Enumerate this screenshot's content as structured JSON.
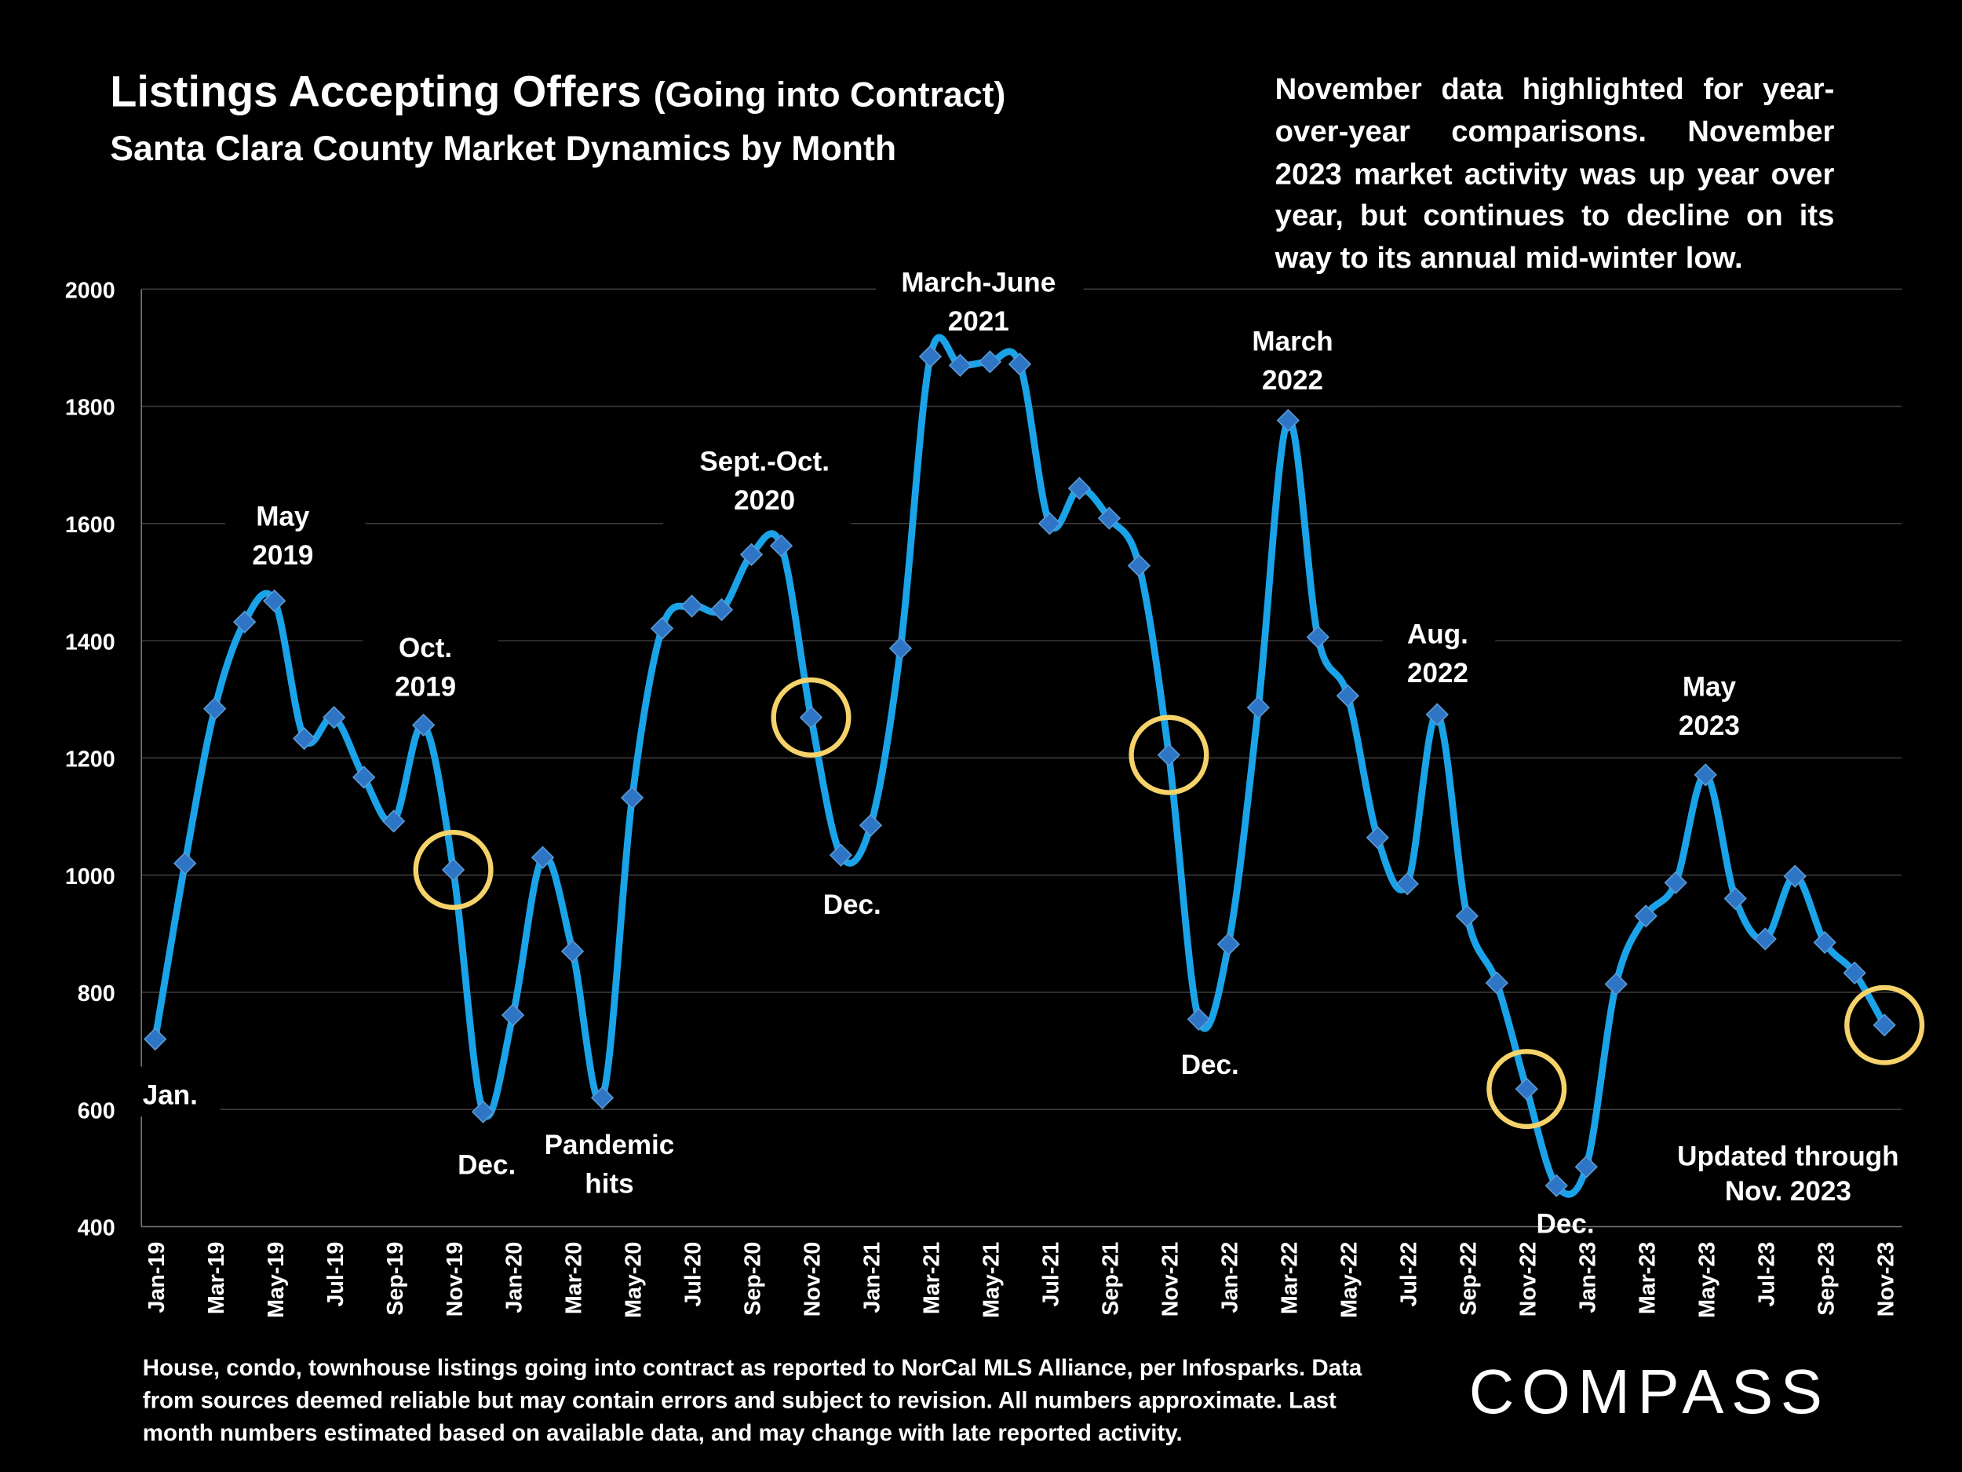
{
  "header": {
    "title_main": "Listings Accepting Offers",
    "title_paren": "(Going into Contract)",
    "subtitle": "Santa Clara County Market Dynamics by Month"
  },
  "note": "November data highlighted for year-over-year comparisons. November 2023 market activity was up year over year, but continues to decline on its way to its annual mid-winter low.",
  "annotations": {
    "jan": "Jan.",
    "may2019": [
      "May",
      "2019"
    ],
    "oct2019": [
      "Oct.",
      "2019"
    ],
    "dec2019": "Dec.",
    "pandemic": [
      "Pandemic",
      "hits"
    ],
    "septoct2020": [
      "Sept.-Oct.",
      "2020"
    ],
    "dec2020": "Dec.",
    "marjun2021": [
      "March-June",
      "2021"
    ],
    "dec2021": "Dec.",
    "mar2022": [
      "March",
      "2022"
    ],
    "aug2022": [
      "Aug.",
      "2022"
    ],
    "dec2022": "Dec.",
    "may2023": [
      "May",
      "2023"
    ],
    "updated": [
      "Updated through",
      "Nov. 2023"
    ]
  },
  "footer": [
    "House, condo, townhouse listings going into contract as reported to NorCal MLS Alliance, per Infosparks. Data",
    "from sources deemed reliable but may contain errors and subject to revision. All numbers approximate. Last",
    "month numbers estimated based on available data, and may change with late reported activity."
  ],
  "logo": "COMPASS",
  "colors": {
    "line": "#1aa3e8",
    "marker": "#2e75c6",
    "highlight": "#f5d36a",
    "grid": "#3a3a3a"
  },
  "chart_data": {
    "type": "line",
    "title": "Listings Accepting Offers (Going into Contract)",
    "subtitle": "Santa Clara County Market Dynamics by Month",
    "ylim": [
      400,
      2000
    ],
    "yticks": [
      400,
      600,
      800,
      1000,
      1200,
      1400,
      1600,
      1800,
      2000
    ],
    "grid": true,
    "x_tick_every": 2,
    "categories": [
      "Jan-19",
      "Feb-19",
      "Mar-19",
      "Apr-19",
      "May-19",
      "Jun-19",
      "Jul-19",
      "Aug-19",
      "Sep-19",
      "Oct-19",
      "Nov-19",
      "Dec-19",
      "Jan-20",
      "Feb-20",
      "Mar-20",
      "Apr-20",
      "May-20",
      "Jun-20",
      "Jul-20",
      "Aug-20",
      "Sep-20",
      "Oct-20",
      "Nov-20",
      "Dec-20",
      "Jan-21",
      "Feb-21",
      "Mar-21",
      "Apr-21",
      "May-21",
      "Jun-21",
      "Jul-21",
      "Aug-21",
      "Sep-21",
      "Oct-21",
      "Nov-21",
      "Dec-21",
      "Jan-22",
      "Feb-22",
      "Mar-22",
      "Apr-22",
      "May-22",
      "Jun-22",
      "Jul-22",
      "Aug-22",
      "Sep-22",
      "Oct-22",
      "Nov-22",
      "Dec-22",
      "Jan-23",
      "Feb-23",
      "Mar-23",
      "Apr-23",
      "May-23",
      "Jun-23",
      "Jul-23",
      "Aug-23",
      "Sep-23",
      "Oct-23",
      "Nov-23"
    ],
    "values": [
      720,
      1020,
      1284,
      1432,
      1468,
      1233,
      1269,
      1167,
      1092,
      1256,
      1009,
      596,
      761,
      1030,
      870,
      620,
      1132,
      1421,
      1459,
      1453,
      1547,
      1562,
      1269,
      1034,
      1085,
      1387,
      1885,
      1870,
      1876,
      1872,
      1600,
      1660,
      1609,
      1528,
      1205,
      754,
      882,
      1286,
      1776,
      1406,
      1306,
      1064,
      985,
      1274,
      930,
      816,
      635,
      470,
      502,
      814,
      930,
      987,
      1171,
      960,
      891,
      998,
      885,
      833,
      744
    ],
    "highlighted": [
      "Nov-19",
      "Nov-20",
      "Nov-21",
      "Nov-22",
      "Nov-23"
    ]
  }
}
